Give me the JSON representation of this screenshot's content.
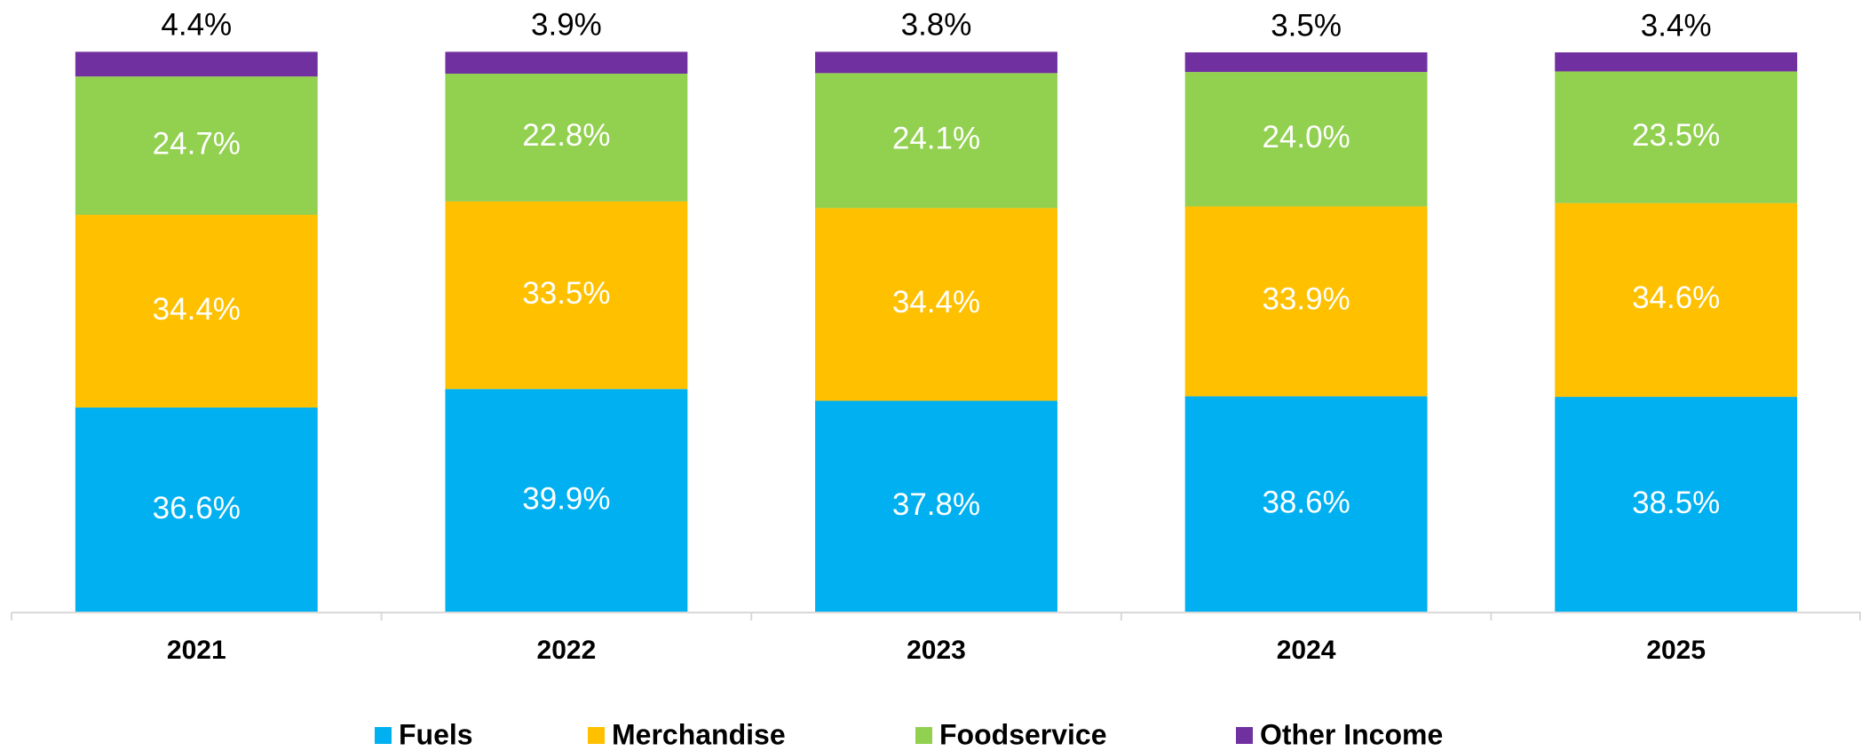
{
  "chart_data": {
    "type": "stacked_bar",
    "categories": [
      "2021",
      "2022",
      "2023",
      "2024",
      "2025"
    ],
    "ylim": [
      0,
      100
    ],
    "series": [
      {
        "name": "Fuels",
        "color": "#00b0f0",
        "values": [
          36.6,
          39.9,
          37.8,
          38.6,
          38.5
        ],
        "value_labels": [
          "36.6%",
          "39.9%",
          "37.8%",
          "38.6%",
          "38.5%"
        ]
      },
      {
        "name": "Merchandise",
        "color": "#ffc000",
        "values": [
          34.4,
          33.5,
          34.4,
          33.9,
          34.6
        ],
        "value_labels": [
          "34.4%",
          "33.5%",
          "34.4%",
          "33.9%",
          "34.6%"
        ]
      },
      {
        "name": "Foodservice",
        "color": "#92d050",
        "values": [
          24.7,
          22.8,
          24.1,
          24.0,
          23.5
        ],
        "value_labels": [
          "24.7%",
          "22.8%",
          "24.1%",
          "24.0%",
          "23.5%"
        ]
      },
      {
        "name": "Other Income",
        "color": "#7030a0",
        "values": [
          4.4,
          3.9,
          3.8,
          3.5,
          3.4
        ],
        "value_labels": [
          "4.4%",
          "3.9%",
          "3.8%",
          "3.5%",
          "3.4%"
        ]
      }
    ]
  }
}
